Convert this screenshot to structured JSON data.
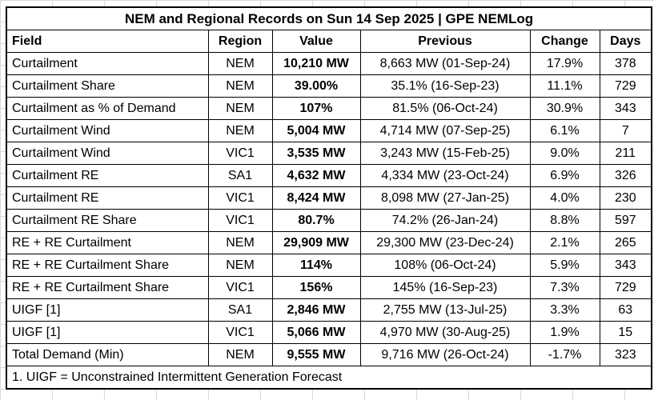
{
  "chart_data": {
    "type": "table",
    "title": "NEM and Regional Records on Sun 14 Sep 2025 | GPE NEMLog",
    "columns": [
      "Field",
      "Region",
      "Value",
      "Previous",
      "Change",
      "Days"
    ],
    "rows": [
      {
        "field": "Curtailment",
        "region": "NEM",
        "value": "10,210 MW",
        "previous": "8,663 MW (01-Sep-24)",
        "change": "17.9%",
        "days": "378"
      },
      {
        "field": "Curtailment Share",
        "region": "NEM",
        "value": "39.00%",
        "previous": "35.1% (16-Sep-23)",
        "change": "11.1%",
        "days": "729"
      },
      {
        "field": "Curtailment as % of Demand",
        "region": "NEM",
        "value": "107%",
        "previous": "81.5% (06-Oct-24)",
        "change": "30.9%",
        "days": "343"
      },
      {
        "field": "Curtailment Wind",
        "region": "NEM",
        "value": "5,004 MW",
        "previous": "4,714 MW (07-Sep-25)",
        "change": "6.1%",
        "days": "7"
      },
      {
        "field": "Curtailment Wind",
        "region": "VIC1",
        "value": "3,535 MW",
        "previous": "3,243 MW (15-Feb-25)",
        "change": "9.0%",
        "days": "211"
      },
      {
        "field": "Curtailment RE",
        "region": "SA1",
        "value": "4,632 MW",
        "previous": "4,334 MW (23-Oct-24)",
        "change": "6.9%",
        "days": "326"
      },
      {
        "field": "Curtailment RE",
        "region": "VIC1",
        "value": "8,424 MW",
        "previous": "8,098 MW (27-Jan-25)",
        "change": "4.0%",
        "days": "230"
      },
      {
        "field": "Curtailment RE Share",
        "region": "VIC1",
        "value": "80.7%",
        "previous": "74.2% (26-Jan-24)",
        "change": "8.8%",
        "days": "597"
      },
      {
        "field": "RE + RE Curtailment",
        "region": "NEM",
        "value": "29,909 MW",
        "previous": "29,300 MW (23-Dec-24)",
        "change": "2.1%",
        "days": "265"
      },
      {
        "field": "RE + RE Curtailment Share",
        "region": "NEM",
        "value": "114%",
        "previous": "108% (06-Oct-24)",
        "change": "5.9%",
        "days": "343"
      },
      {
        "field": "RE + RE Curtailment Share",
        "region": "VIC1",
        "value": "156%",
        "previous": "145% (16-Sep-23)",
        "change": "7.3%",
        "days": "729"
      },
      {
        "field": "UIGF [1]",
        "region": "SA1",
        "value": "2,846 MW",
        "previous": "2,755 MW (13-Jul-25)",
        "change": "3.3%",
        "days": "63"
      },
      {
        "field": "UIGF [1]",
        "region": "VIC1",
        "value": "5,066 MW",
        "previous": "4,970 MW (30-Aug-25)",
        "change": "1.9%",
        "days": "15"
      },
      {
        "field": "Total Demand (Min)",
        "region": "NEM",
        "value": "9,555 MW",
        "previous": "9,716 MW (26-Oct-24)",
        "change": "-1.7%",
        "days": "323"
      }
    ],
    "footnote": "1. UIGF = Unconstrained Intermittent Generation Forecast"
  },
  "colors": {
    "table_border": "#000000",
    "cell_background": "#ffffff",
    "spreadsheet_gridline": "#d9d9d9"
  }
}
